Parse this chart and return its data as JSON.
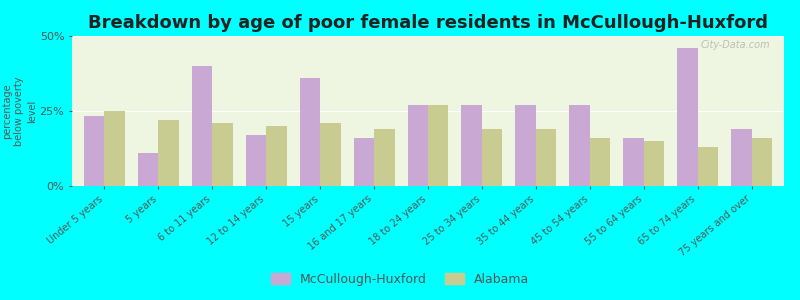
{
  "title": "Breakdown by age of poor female residents in McCullough-Huxford",
  "ylabel": "percentage\nbelow poverty\nlevel",
  "categories": [
    "Under 5 years",
    "5 years",
    "6 to 11 years",
    "12 to 14 years",
    "15 years",
    "16 and 17 years",
    "18 to 24 years",
    "25 to 34 years",
    "35 to 44 years",
    "45 to 54 years",
    "55 to 64 years",
    "65 to 74 years",
    "75 years and over"
  ],
  "mccullough_values": [
    23.5,
    11.0,
    40.0,
    17.0,
    36.0,
    16.0,
    27.0,
    27.0,
    27.0,
    27.0,
    16.0,
    46.0,
    19.0
  ],
  "alabama_values": [
    25.0,
    22.0,
    21.0,
    20.0,
    21.0,
    19.0,
    27.0,
    19.0,
    19.0,
    16.0,
    15.0,
    13.0,
    16.0
  ],
  "mccullough_color": "#c9a8d4",
  "alabama_color": "#c8cc90",
  "ylim": [
    0,
    50
  ],
  "yticks": [
    0,
    25,
    50
  ],
  "ytick_labels": [
    "0%",
    "25%",
    "50%"
  ],
  "watermark": "City-Data.com",
  "legend_mccullough": "McCullough-Huxford",
  "legend_alabama": "Alabama",
  "cyan_bg": "#00ffff",
  "title_fontsize": 13,
  "plot_bg": "#eef5e0"
}
